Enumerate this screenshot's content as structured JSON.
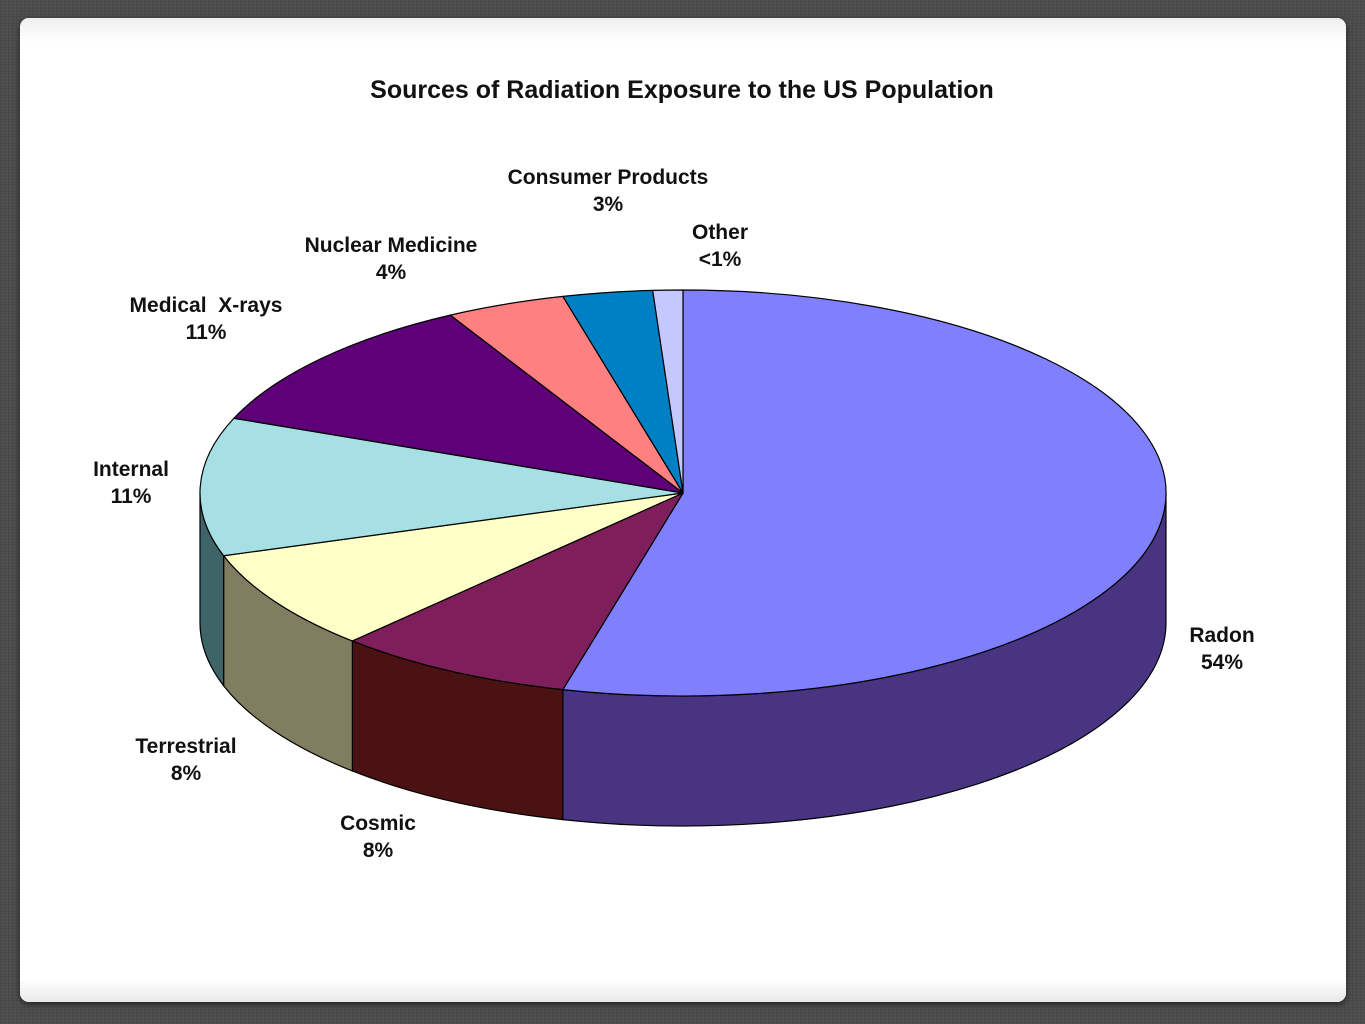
{
  "chart_data": {
    "type": "pie",
    "title": "Sources of Radiation Exposure to the US Population",
    "three_d": true,
    "legend": "none",
    "slices": [
      {
        "label": "Radon",
        "value_label": "54%",
        "value": 54,
        "color": "#8080ff",
        "side_color": "#483480"
      },
      {
        "label": "Cosmic",
        "value_label": "8%",
        "value": 8,
        "color": "#7e1f5c",
        "side_color": "#4a1212"
      },
      {
        "label": "Terrestrial",
        "value_label": "8%",
        "value": 8,
        "color": "#ffffc8",
        "side_color": "#807e60"
      },
      {
        "label": "Internal",
        "value_label": "11%",
        "value": 11,
        "color": "#a6e0e4",
        "side_color": "#3e6468"
      },
      {
        "label": "Medical  X-rays",
        "value_label": "11%",
        "value": 11,
        "color": "#5e0078",
        "side_color": "#300040"
      },
      {
        "label": "Nuclear Medicine",
        "value_label": "4%",
        "value": 4,
        "color": "#ff8080",
        "side_color": "#804040"
      },
      {
        "label": "Consumer Products",
        "value_label": "3%",
        "value": 3,
        "color": "#0080c4",
        "side_color": "#004060"
      },
      {
        "label": "Other",
        "value_label": "<1%",
        "value": 1,
        "color": "#c4c8ff",
        "side_color": "#606480"
      }
    ]
  }
}
